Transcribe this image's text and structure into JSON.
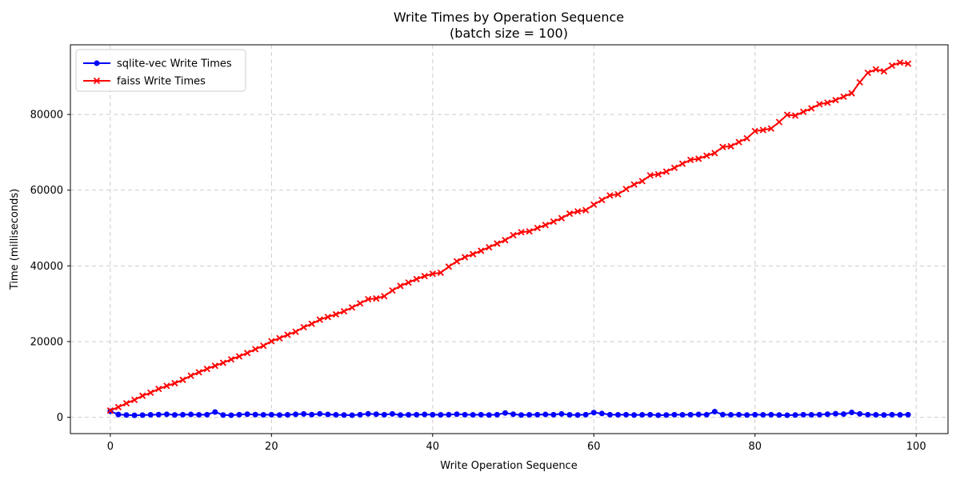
{
  "figure": {
    "background_color": "#ffffff",
    "grid_color": "#cccccc",
    "spine_color": "#000000",
    "text_color": "#000000"
  },
  "chart_data": {
    "type": "line",
    "title": "Write Times by Operation Sequence",
    "subtitle": "(batch size = 100)",
    "xlabel": "Write Operation Sequence",
    "ylabel": "Time (milliseconds)",
    "xlim": [
      -4.95,
      103.95
    ],
    "ylim": [
      -4300,
      98400
    ],
    "xticks": [
      0,
      20,
      40,
      60,
      80,
      100
    ],
    "yticks": [
      0,
      20000,
      40000,
      60000,
      80000
    ],
    "grid": true,
    "grid_style": "dashed",
    "legend_position": "upper-left",
    "x": [
      0,
      1,
      2,
      3,
      4,
      5,
      6,
      7,
      8,
      9,
      10,
      11,
      12,
      13,
      14,
      15,
      16,
      17,
      18,
      19,
      20,
      21,
      22,
      23,
      24,
      25,
      26,
      27,
      28,
      29,
      30,
      31,
      32,
      33,
      34,
      35,
      36,
      37,
      38,
      39,
      40,
      41,
      42,
      43,
      44,
      45,
      46,
      47,
      48,
      49,
      50,
      51,
      52,
      53,
      54,
      55,
      56,
      57,
      58,
      59,
      60,
      61,
      62,
      63,
      64,
      65,
      66,
      67,
      68,
      69,
      70,
      71,
      72,
      73,
      74,
      75,
      76,
      77,
      78,
      79,
      80,
      81,
      82,
      83,
      84,
      85,
      86,
      87,
      88,
      89,
      90,
      91,
      92,
      93,
      94,
      95,
      96,
      97,
      98,
      99
    ],
    "series": [
      {
        "name": "sqlite-vec Write Times",
        "color": "#0000ff",
        "marker": "circle",
        "values": [
          1600,
          750,
          620,
          540,
          580,
          660,
          720,
          810,
          640,
          700,
          760,
          660,
          700,
          1400,
          620,
          560,
          700,
          820,
          720,
          660,
          700,
          620,
          660,
          800,
          900,
          720,
          920,
          760,
          660,
          620,
          560,
          700,
          920,
          820,
          700,
          900,
          620,
          660,
          700,
          760,
          700,
          660,
          700,
          820,
          700,
          660,
          700,
          620,
          700,
          1150,
          820,
          620,
          660,
          700,
          760,
          700,
          900,
          660,
          620,
          700,
          1250,
          1000,
          700,
          660,
          700,
          620,
          660,
          700,
          560,
          620,
          700,
          660,
          700,
          760,
          700,
          1500,
          720,
          660,
          700,
          620,
          700,
          660,
          700,
          620,
          560,
          620,
          700,
          660,
          700,
          820,
          950,
          860,
          1300,
          900,
          700,
          660,
          620,
          700,
          660,
          700
        ]
      },
      {
        "name": "faiss Write Times",
        "color": "#ff0000",
        "marker": "x",
        "values": [
          1800,
          2700,
          3700,
          4600,
          5700,
          6500,
          7500,
          8300,
          9000,
          9900,
          11000,
          11900,
          12800,
          13600,
          14400,
          15300,
          16100,
          17000,
          18000,
          18900,
          20100,
          20900,
          21800,
          22600,
          23800,
          24700,
          25800,
          26500,
          27200,
          28000,
          29000,
          30100,
          31200,
          31400,
          32000,
          33500,
          34700,
          35600,
          36500,
          37300,
          37900,
          38200,
          39800,
          41200,
          42300,
          43100,
          44000,
          44900,
          45900,
          46800,
          48100,
          48900,
          49100,
          50000,
          50800,
          51700,
          52600,
          53800,
          54400,
          54700,
          56200,
          57400,
          58600,
          58900,
          60300,
          61500,
          62400,
          63900,
          64200,
          64900,
          65900,
          67000,
          68000,
          68300,
          69100,
          69800,
          71400,
          71600,
          72700,
          73700,
          75600,
          75900,
          76300,
          78000,
          79900,
          79700,
          80700,
          81600,
          82700,
          83100,
          83800,
          84700,
          85600,
          88500,
          91000,
          91900,
          91400,
          92900,
          93700,
          93400
        ]
      }
    ]
  },
  "legend": {
    "entries": [
      {
        "label": "sqlite-vec Write Times"
      },
      {
        "label": "faiss Write Times"
      }
    ]
  }
}
